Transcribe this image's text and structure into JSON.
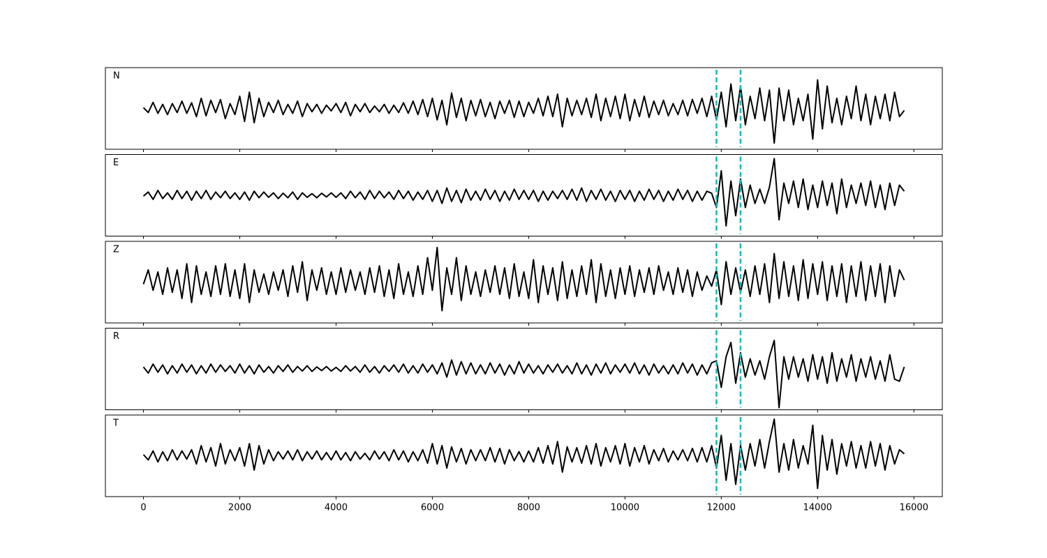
{
  "chart_data": {
    "type": "line",
    "layout": "stacked",
    "x": [
      0,
      100,
      200,
      300,
      400,
      500,
      600,
      700,
      800,
      900,
      1000,
      1100,
      1200,
      1300,
      1400,
      1500,
      1600,
      1700,
      1800,
      1900,
      2000,
      2100,
      2200,
      2300,
      2400,
      2500,
      2600,
      2700,
      2800,
      2900,
      3000,
      3100,
      3200,
      3300,
      3400,
      3500,
      3600,
      3700,
      3800,
      3900,
      4000,
      4100,
      4200,
      4300,
      4400,
      4500,
      4600,
      4700,
      4800,
      4900,
      5000,
      5100,
      5200,
      5300,
      5400,
      5500,
      5600,
      5700,
      5800,
      5900,
      6000,
      6100,
      6200,
      6300,
      6400,
      6500,
      6600,
      6700,
      6800,
      6900,
      7000,
      7100,
      7200,
      7300,
      7400,
      7500,
      7600,
      7700,
      7800,
      7900,
      8000,
      8100,
      8200,
      8300,
      8400,
      8500,
      8600,
      8700,
      8800,
      8900,
      9000,
      9100,
      9200,
      9300,
      9400,
      9500,
      9600,
      9700,
      9800,
      9900,
      10000,
      10100,
      10200,
      10300,
      10400,
      10500,
      10600,
      10700,
      10800,
      10900,
      11000,
      11100,
      11200,
      11300,
      11400,
      11500,
      11600,
      11700,
      11800,
      11900,
      12000,
      12100,
      12200,
      12300,
      12400,
      12500,
      12600,
      12700,
      12800,
      12900,
      13000,
      13100,
      13200,
      13300,
      13400,
      13500,
      13600,
      13700,
      13800,
      13900,
      14000,
      14100,
      14200,
      14300,
      14400,
      14500,
      14600,
      14700,
      14800,
      14900,
      15000,
      15100,
      15200,
      15300,
      15400,
      15500,
      15600,
      15700,
      15800
    ],
    "xlim": [
      -790,
      16590
    ],
    "xticks": [
      0,
      2000,
      4000,
      6000,
      8000,
      10000,
      12000,
      14000,
      16000
    ],
    "ylim": [
      -1,
      1
    ],
    "vlines": [
      11900,
      12400
    ],
    "vline_color": "#00bfbf",
    "series": [
      {
        "name": "N",
        "color": "#000000",
        "values": [
          0.02,
          -0.1,
          0.15,
          -0.12,
          0.1,
          -0.15,
          0.12,
          -0.1,
          0.18,
          -0.12,
          0.14,
          -0.2,
          0.25,
          -0.18,
          0.2,
          -0.1,
          0.22,
          -0.25,
          0.12,
          -0.15,
          0.3,
          -0.32,
          0.4,
          -0.35,
          0.25,
          -0.2,
          0.15,
          -0.1,
          0.2,
          -0.15,
          0.1,
          -0.12,
          0.18,
          -0.2,
          0.12,
          -0.08,
          0.1,
          -0.12,
          0.08,
          -0.06,
          0.12,
          -0.1,
          0.15,
          -0.18,
          0.1,
          -0.08,
          0.12,
          -0.1,
          0.06,
          -0.08,
          0.1,
          -0.12,
          0.08,
          -0.1,
          0.14,
          -0.12,
          0.18,
          -0.15,
          0.22,
          -0.2,
          0.25,
          -0.28,
          0.2,
          -0.4,
          0.38,
          -0.22,
          0.25,
          -0.3,
          0.2,
          -0.18,
          0.22,
          -0.2,
          0.15,
          -0.25,
          0.18,
          -0.12,
          0.2,
          -0.22,
          0.18,
          -0.2,
          0.15,
          -0.12,
          0.25,
          -0.18,
          0.3,
          -0.2,
          0.35,
          -0.45,
          0.25,
          -0.18,
          0.2,
          -0.15,
          0.25,
          -0.22,
          0.35,
          -0.3,
          0.25,
          -0.2,
          0.3,
          -0.25,
          0.35,
          -0.3,
          0.22,
          -0.2,
          0.3,
          -0.22,
          0.18,
          -0.15,
          0.2,
          -0.18,
          0.12,
          -0.15,
          0.2,
          -0.18,
          0.22,
          -0.12,
          0.25,
          -0.2,
          0.3,
          -0.28,
          0.4,
          -0.45,
          0.6,
          -0.3,
          0.55,
          -0.4,
          0.3,
          -0.25,
          0.5,
          -0.3,
          0.45,
          -0.85,
          0.5,
          -0.3,
          0.45,
          -0.4,
          0.25,
          -0.3,
          0.35,
          -0.75,
          0.7,
          -0.5,
          0.55,
          -0.35,
          0.25,
          -0.4,
          0.3,
          -0.25,
          0.55,
          -0.3,
          0.35,
          -0.4,
          0.3,
          -0.25,
          0.35,
          -0.3,
          0.4,
          -0.2,
          -0.05
        ]
      },
      {
        "name": "E",
        "color": "#000000",
        "values": [
          -0.02,
          0.08,
          -0.1,
          0.12,
          -0.08,
          0.06,
          -0.1,
          0.12,
          -0.08,
          0.1,
          -0.12,
          0.1,
          -0.08,
          0.12,
          -0.1,
          0.08,
          -0.06,
          0.1,
          -0.08,
          0.06,
          -0.1,
          0.08,
          -0.12,
          0.1,
          -0.06,
          0.08,
          -0.05,
          0.06,
          -0.08,
          0.05,
          -0.06,
          0.08,
          -0.1,
          0.06,
          -0.05,
          0.04,
          -0.06,
          0.05,
          -0.04,
          0.06,
          -0.05,
          0.06,
          -0.08,
          0.1,
          -0.06,
          0.08,
          -0.1,
          0.12,
          -0.08,
          0.1,
          -0.06,
          0.08,
          -0.1,
          0.12,
          -0.08,
          0.1,
          -0.12,
          0.08,
          -0.1,
          0.12,
          -0.15,
          0.12,
          -0.2,
          0.18,
          -0.15,
          0.12,
          -0.18,
          0.15,
          -0.12,
          0.1,
          -0.12,
          0.15,
          -0.1,
          0.12,
          -0.15,
          0.1,
          -0.12,
          0.15,
          -0.1,
          0.12,
          -0.1,
          0.12,
          -0.15,
          0.1,
          -0.12,
          0.1,
          -0.08,
          0.12,
          -0.1,
          0.15,
          -0.12,
          0.18,
          -0.15,
          0.12,
          -0.1,
          0.15,
          -0.12,
          0.1,
          -0.15,
          0.12,
          -0.1,
          0.12,
          -0.15,
          0.1,
          -0.12,
          0.15,
          -0.1,
          0.12,
          -0.15,
          0.1,
          -0.12,
          0.15,
          -0.1,
          0.12,
          -0.15,
          0.1,
          -0.12,
          0.1,
          0.05,
          -0.3,
          0.6,
          -0.75,
          0.35,
          -0.5,
          0.4,
          -0.3,
          0.25,
          -0.2,
          0.15,
          -0.2,
          0.2,
          0.9,
          -0.6,
          0.3,
          -0.2,
          0.35,
          -0.3,
          0.4,
          -0.35,
          0.25,
          -0.3,
          0.35,
          -0.25,
          0.3,
          -0.45,
          0.4,
          -0.3,
          0.25,
          -0.2,
          0.3,
          -0.25,
          0.35,
          -0.3,
          0.25,
          -0.35,
          0.3,
          -0.25,
          0.25,
          0.1
        ]
      },
      {
        "name": "Z",
        "color": "#000000",
        "values": [
          -0.05,
          0.3,
          -0.2,
          0.25,
          -0.3,
          0.35,
          -0.25,
          0.3,
          -0.4,
          0.45,
          -0.5,
          0.4,
          -0.3,
          0.25,
          -0.35,
          0.4,
          -0.3,
          0.45,
          -0.35,
          0.3,
          -0.4,
          0.45,
          -0.5,
          0.3,
          -0.25,
          0.2,
          -0.3,
          0.25,
          -0.2,
          0.3,
          -0.35,
          0.4,
          -0.25,
          0.5,
          -0.45,
          0.3,
          -0.2,
          0.35,
          -0.3,
          0.25,
          -0.3,
          0.35,
          -0.25,
          0.3,
          -0.2,
          0.25,
          -0.3,
          0.35,
          -0.25,
          0.4,
          -0.35,
          0.3,
          -0.4,
          0.45,
          -0.3,
          0.25,
          -0.35,
          0.4,
          -0.3,
          0.6,
          -0.2,
          0.85,
          -0.7,
          0.35,
          -0.3,
          0.6,
          -0.45,
          0.4,
          -0.3,
          0.25,
          -0.35,
          0.3,
          -0.25,
          0.4,
          -0.3,
          0.35,
          -0.4,
          0.45,
          -0.35,
          0.25,
          -0.4,
          0.55,
          -0.5,
          0.4,
          -0.3,
          0.35,
          -0.45,
          0.5,
          -0.4,
          0.3,
          -0.35,
          0.4,
          -0.3,
          0.55,
          -0.5,
          0.45,
          -0.35,
          0.3,
          -0.4,
          0.35,
          -0.3,
          0.4,
          -0.35,
          0.3,
          -0.25,
          0.35,
          -0.3,
          0.4,
          -0.2,
          0.25,
          -0.3,
          0.35,
          -0.25,
          0.3,
          -0.35,
          0.25,
          -0.2,
          0.15,
          -0.1,
          0.3,
          -0.55,
          0.5,
          -0.3,
          0.35,
          -0.25,
          0.3,
          -0.35,
          0.4,
          -0.3,
          0.45,
          -0.5,
          0.7,
          -0.4,
          0.5,
          -0.35,
          0.4,
          -0.45,
          0.55,
          -0.4,
          0.45,
          -0.3,
          0.5,
          -0.45,
          0.4,
          -0.35,
          0.45,
          -0.5,
          0.4,
          -0.35,
          0.5,
          -0.45,
          0.4,
          -0.35,
          0.45,
          -0.5,
          0.4,
          -0.35,
          0.3,
          0.05
        ]
      },
      {
        "name": "R",
        "color": "#000000",
        "values": [
          0.05,
          -0.1,
          0.12,
          -0.08,
          0.1,
          -0.12,
          0.08,
          -0.1,
          0.12,
          -0.08,
          0.1,
          -0.12,
          0.08,
          -0.1,
          0.12,
          -0.08,
          0.1,
          -0.06,
          0.08,
          -0.1,
          0.12,
          -0.1,
          0.08,
          -0.12,
          0.1,
          -0.08,
          0.06,
          -0.1,
          0.08,
          -0.06,
          0.1,
          -0.08,
          0.06,
          -0.05,
          0.08,
          -0.06,
          0.05,
          -0.04,
          0.06,
          -0.05,
          0.04,
          -0.06,
          0.08,
          -0.05,
          0.06,
          -0.08,
          0.1,
          -0.08,
          0.06,
          -0.1,
          0.08,
          -0.06,
          0.1,
          -0.08,
          0.12,
          -0.1,
          0.08,
          -0.1,
          0.12,
          -0.08,
          0.1,
          -0.12,
          0.15,
          -0.2,
          0.22,
          -0.15,
          0.18,
          -0.12,
          0.15,
          -0.12,
          0.1,
          -0.12,
          0.15,
          -0.1,
          0.12,
          -0.15,
          0.1,
          -0.12,
          0.18,
          -0.1,
          0.12,
          -0.1,
          0.08,
          -0.12,
          0.1,
          -0.08,
          0.12,
          -0.1,
          0.08,
          -0.12,
          0.15,
          -0.12,
          0.1,
          -0.15,
          0.12,
          -0.1,
          0.15,
          -0.12,
          0.1,
          -0.08,
          0.12,
          -0.1,
          0.15,
          -0.12,
          0.1,
          -0.15,
          0.12,
          -0.1,
          0.08,
          -0.12,
          0.1,
          -0.12,
          0.15,
          -0.1,
          0.12,
          -0.15,
          0.1,
          -0.12,
          0.15,
          0.2,
          -0.45,
          0.3,
          0.65,
          -0.35,
          0.4,
          -0.2,
          0.25,
          -0.15,
          0.2,
          -0.25,
          0.3,
          0.7,
          -0.95,
          0.3,
          -0.25,
          0.3,
          -0.2,
          0.25,
          -0.3,
          0.35,
          -0.25,
          0.3,
          -0.35,
          0.4,
          -0.3,
          0.25,
          -0.2,
          0.35,
          -0.3,
          0.25,
          -0.2,
          0.3,
          -0.25,
          0.2,
          -0.3,
          0.35,
          -0.25,
          -0.3,
          0.05
        ]
      },
      {
        "name": "T",
        "color": "#000000",
        "values": [
          0.03,
          -0.1,
          0.12,
          -0.15,
          0.1,
          -0.12,
          0.15,
          -0.1,
          0.12,
          -0.08,
          0.15,
          -0.2,
          0.25,
          -0.15,
          0.2,
          -0.25,
          0.3,
          -0.2,
          0.15,
          -0.12,
          0.2,
          -0.25,
          0.3,
          -0.35,
          0.25,
          -0.2,
          0.15,
          -0.12,
          0.1,
          -0.08,
          0.12,
          -0.1,
          0.15,
          -0.12,
          0.1,
          -0.08,
          0.12,
          -0.1,
          0.08,
          -0.1,
          0.12,
          -0.1,
          0.08,
          -0.12,
          0.1,
          -0.08,
          0.06,
          -0.1,
          0.12,
          -0.08,
          0.1,
          -0.12,
          0.15,
          -0.1,
          0.12,
          -0.15,
          0.1,
          -0.12,
          0.15,
          -0.18,
          0.3,
          -0.2,
          0.25,
          -0.3,
          0.22,
          -0.15,
          0.18,
          -0.2,
          0.15,
          -0.12,
          0.15,
          -0.12,
          0.2,
          -0.15,
          0.18,
          -0.2,
          0.15,
          -0.12,
          0.1,
          -0.15,
          0.12,
          -0.15,
          0.2,
          -0.18,
          0.25,
          -0.2,
          0.35,
          -0.4,
          0.22,
          -0.15,
          0.2,
          -0.18,
          0.25,
          -0.2,
          0.3,
          -0.25,
          0.2,
          -0.15,
          0.25,
          -0.2,
          0.3,
          -0.25,
          0.2,
          -0.15,
          0.25,
          -0.2,
          0.15,
          -0.12,
          0.18,
          -0.15,
          0.12,
          -0.1,
          0.15,
          -0.12,
          0.18,
          -0.15,
          0.2,
          -0.15,
          0.25,
          -0.3,
          0.5,
          -0.6,
          0.3,
          -0.7,
          0.25,
          -0.35,
          0.3,
          -0.25,
          0.4,
          -0.3,
          0.35,
          0.9,
          -0.4,
          0.3,
          -0.35,
          0.4,
          -0.3,
          0.25,
          -0.2,
          0.75,
          -0.8,
          0.5,
          -0.35,
          0.4,
          -0.45,
          0.3,
          -0.25,
          0.35,
          -0.3,
          0.25,
          -0.3,
          0.35,
          -0.25,
          0.3,
          -0.35,
          0.25,
          -0.2,
          0.15,
          0.05
        ]
      }
    ]
  }
}
